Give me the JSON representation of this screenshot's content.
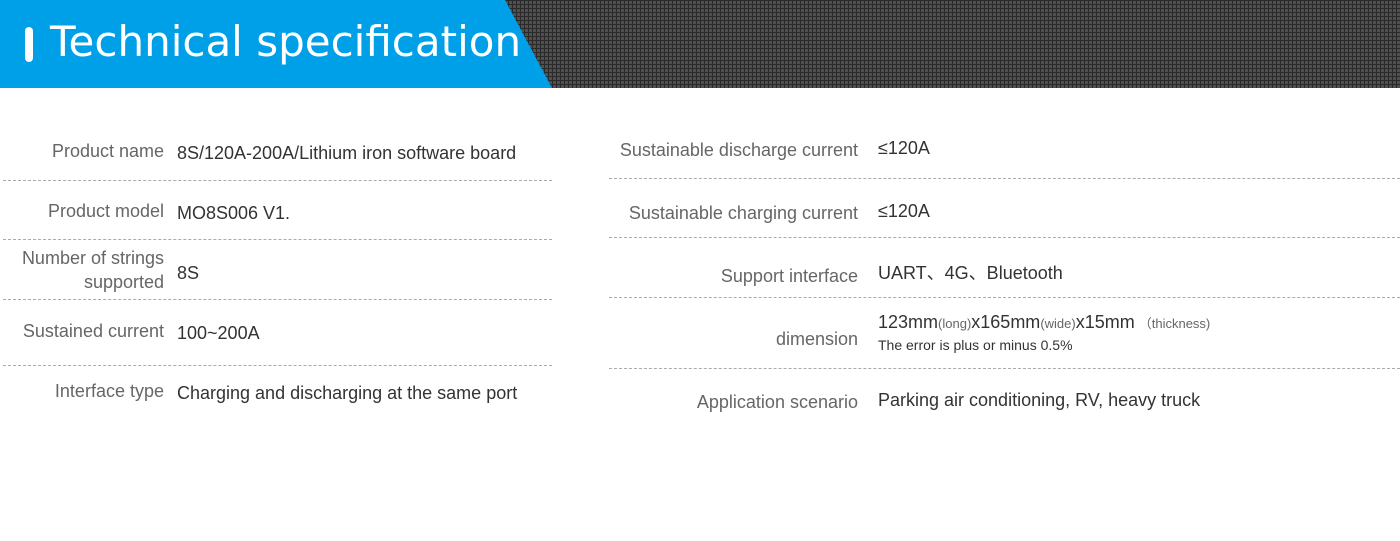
{
  "header": {
    "title": "Technical specification",
    "accent": "#00a0e9"
  },
  "left": [
    {
      "label": "Product name",
      "value": "8S/120A-200A/Lithium iron software board"
    },
    {
      "label": "Product model",
      "value": "MO8S006 V1."
    },
    {
      "label": "Number of strings supported",
      "value": "8S"
    },
    {
      "label": "Sustained current",
      "value": "100~200A"
    },
    {
      "label": "Interface type",
      "value": "Charging and discharging at the same port"
    }
  ],
  "right": [
    {
      "label": "Sustainable discharge current",
      "value": "≤120A"
    },
    {
      "label": "Sustainable charging current",
      "value": "≤120A"
    },
    {
      "label": "Support interface",
      "value": "UART、4G、Bluetooth"
    },
    {
      "label": "dimension",
      "parts": [
        "123mm",
        "(long)",
        "x165mm",
        "(wide)",
        "x15mm",
        "（thickness)"
      ],
      "note": "The error is plus or minus 0.5%"
    },
    {
      "label": "Application scenario",
      "value": "Parking air conditioning, RV, heavy truck"
    }
  ]
}
